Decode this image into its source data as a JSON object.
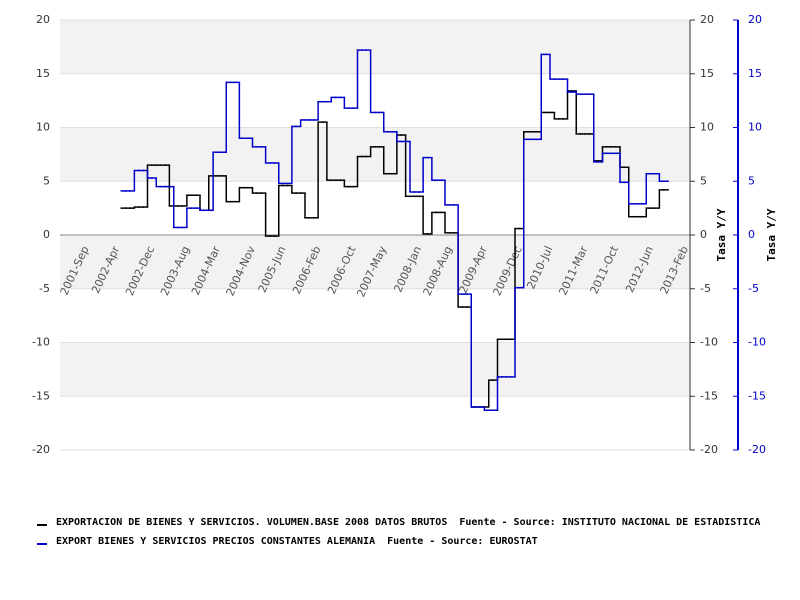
{
  "chart_data": {
    "type": "line",
    "step": true,
    "grid": true,
    "ylabel": "Tasa Y/Y",
    "y2label": "Tasa Y/Y",
    "ylim": [
      -20,
      20
    ],
    "yticks": [
      -20,
      -15,
      -10,
      -5,
      0,
      5,
      10,
      15,
      20
    ],
    "y2lim": [
      -20,
      20
    ],
    "y2ticks": [
      -20,
      -15,
      -10,
      -5,
      0,
      5,
      10,
      15,
      20
    ],
    "y2color": "#0000cc",
    "categories": [
      null,
      null,
      null,
      null,
      null,
      null,
      "2001-Sep",
      null,
      null,
      null,
      null,
      null,
      null,
      "2002-Apr",
      null,
      null,
      null,
      null,
      null,
      null,
      null,
      "2002-Dec",
      null,
      null,
      null,
      null,
      null,
      null,
      null,
      "2003-Aug",
      null,
      null,
      null,
      null,
      null,
      null,
      "2004-Mar",
      null,
      null,
      null,
      null,
      null,
      null,
      null,
      "2004-Nov",
      null,
      null,
      null,
      null,
      null,
      null,
      "2005-Jun",
      null,
      null,
      null,
      null,
      null,
      null,
      null,
      "2006-Feb",
      null,
      null,
      null,
      null,
      null,
      null,
      null,
      "2006-Oct",
      null,
      null,
      null,
      null,
      null,
      null,
      "2007-May",
      null,
      null,
      null,
      null,
      null,
      null,
      null,
      "2008-Jan",
      null,
      null,
      null,
      null,
      null,
      null,
      "2008-Aug",
      null,
      null,
      null,
      null,
      null,
      null,
      null,
      "2009-Apr",
      null,
      null,
      null,
      null,
      null,
      null,
      null,
      "2009-Dec",
      null,
      null,
      null,
      null,
      null,
      null,
      "2010-Jul",
      null,
      null,
      null,
      null,
      null,
      null,
      null,
      "2011-Mar",
      null,
      null,
      null,
      null,
      null,
      null,
      "2011-Oct",
      null,
      null,
      null,
      null,
      null,
      null,
      null,
      "2012-Jun",
      null,
      null,
      null,
      null,
      null,
      null,
      null,
      "2013-Feb"
    ],
    "series": [
      {
        "name": "EXPORTACION DE BIENES Y SERVICIOS. VOLUMEN.BASE 2008 DATOS BRUTOS  Fuente - Source: INSTITUTO NACIONAL DE ESTADISTICA",
        "color": "#000000",
        "values": [
          null,
          null,
          null,
          null,
          null,
          null,
          null,
          null,
          null,
          null,
          null,
          null,
          null,
          null,
          2.5,
          2.5,
          2.5,
          2.6,
          2.6,
          2.6,
          6.5,
          6.5,
          6.5,
          6.5,
          6.5,
          2.7,
          2.7,
          2.7,
          2.7,
          3.7,
          3.7,
          3.7,
          2.3,
          2.3,
          5.5,
          5.5,
          5.5,
          5.5,
          3.1,
          3.1,
          3.1,
          4.4,
          4.4,
          4.4,
          3.9,
          3.9,
          3.9,
          -0.1,
          -0.1,
          -0.1,
          4.6,
          4.6,
          4.6,
          3.9,
          3.9,
          3.9,
          1.6,
          1.6,
          1.6,
          10.5,
          10.5,
          5.1,
          5.1,
          5.1,
          5.1,
          4.5,
          4.5,
          4.5,
          7.3,
          7.3,
          7.3,
          8.2,
          8.2,
          8.2,
          5.7,
          5.7,
          5.7,
          9.3,
          9.3,
          3.6,
          3.6,
          3.6,
          3.6,
          0.1,
          0.1,
          2.1,
          2.1,
          2.1,
          0.2,
          0.2,
          0.2,
          -6.7,
          -6.7,
          -6.7,
          -16,
          -16,
          -16,
          -16,
          -13.5,
          -13.5,
          -9.7,
          -9.7,
          -9.7,
          -9.7,
          0.6,
          0.6,
          9.6,
          9.6,
          9.6,
          9.6,
          11.4,
          11.4,
          11.4,
          10.8,
          10.8,
          10.8,
          13.4,
          13.4,
          9.4,
          9.4,
          9.4,
          9.4,
          6.9,
          6.9,
          8.2,
          8.2,
          8.2,
          8.2,
          6.3,
          6.3,
          1.7,
          1.7,
          1.7,
          1.7,
          2.5,
          2.5,
          2.5,
          4.2,
          4.2,
          null,
          null,
          null,
          null,
          null
        ]
      },
      {
        "name": "EXPORT BIENES Y SERVICIOS PRECIOS CONSTANTES ALEMANIA  Fuente - Source: EUROSTAT",
        "color": "#0000cc",
        "axis": "y2",
        "values": [
          null,
          null,
          null,
          null,
          null,
          null,
          null,
          null,
          null,
          null,
          null,
          null,
          null,
          null,
          4.1,
          4.1,
          4.1,
          6.0,
          6.0,
          6.0,
          5.3,
          5.3,
          4.5,
          4.5,
          4.5,
          4.5,
          0.7,
          0.7,
          0.7,
          2.5,
          2.5,
          2.5,
          2.3,
          2.3,
          2.3,
          7.7,
          7.7,
          7.7,
          14.2,
          14.2,
          14.2,
          9.0,
          9.0,
          9.0,
          8.2,
          8.2,
          8.2,
          6.7,
          6.7,
          6.7,
          4.8,
          4.8,
          4.8,
          10.1,
          10.1,
          10.7,
          10.7,
          10.7,
          10.7,
          12.4,
          12.4,
          12.4,
          12.8,
          12.8,
          12.8,
          11.8,
          11.8,
          11.8,
          17.2,
          17.2,
          17.2,
          11.4,
          11.4,
          11.4,
          9.6,
          9.6,
          9.6,
          8.7,
          8.7,
          8.7,
          4.0,
          4.0,
          4.0,
          7.2,
          7.2,
          5.1,
          5.1,
          5.1,
          2.8,
          2.8,
          2.8,
          -5.5,
          -5.5,
          -5.5,
          -16,
          -16,
          -16,
          -16.3,
          -16.3,
          -16.3,
          -13.2,
          -13.2,
          -13.2,
          -13.2,
          -4.9,
          -4.9,
          8.9,
          8.9,
          8.9,
          8.9,
          16.8,
          16.8,
          14.5,
          14.5,
          14.5,
          14.5,
          13.3,
          13.3,
          13.1,
          13.1,
          13.1,
          13.1,
          6.8,
          6.8,
          7.6,
          7.6,
          7.6,
          7.6,
          4.9,
          4.9,
          2.9,
          2.9,
          2.9,
          2.9,
          5.7,
          5.7,
          5.7,
          5.0,
          5.0,
          null,
          null,
          null,
          null,
          null
        ]
      }
    ]
  }
}
